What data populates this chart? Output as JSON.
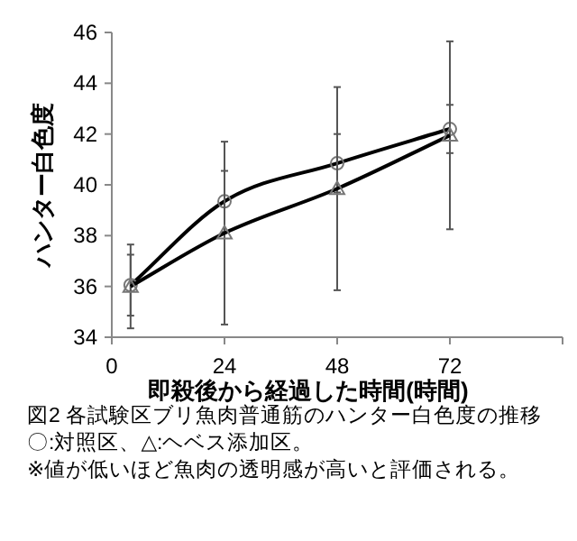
{
  "chart_data": {
    "type": "line",
    "title": "図2  各試験区ブリ魚肉普通筋のハンター白色度の推移",
    "annotations": [
      "〇:対照区、△:ヘベス添加区。",
      "※値が低いほど魚肉の透明感が高いと評価される。"
    ],
    "xlabel": "即殺後から経過した時間(時間)",
    "ylabel": "ハンター白色度",
    "x": [
      4,
      24,
      48,
      72
    ],
    "series": [
      {
        "color": "#000000",
        "marker": "circle",
        "values": [
          36.05,
          39.35,
          40.85,
          42.2
        ],
        "errors": [
          1.2,
          1.2,
          1.15,
          0.95
        ]
      },
      {
        "color": "#000000",
        "marker": "triangle",
        "values": [
          36.0,
          38.1,
          39.85,
          41.95
        ],
        "errors": [
          1.65,
          3.6,
          4.0,
          3.7
        ]
      }
    ],
    "xlim": [
      0,
      96
    ],
    "xticks": [
      0,
      24,
      48,
      72,
      {
        "value": 96,
        "label": null
      }
    ],
    "ylim": [
      34,
      46
    ],
    "yticks": [
      34,
      36,
      38,
      40,
      42,
      44,
      46
    ],
    "grid": false
  }
}
